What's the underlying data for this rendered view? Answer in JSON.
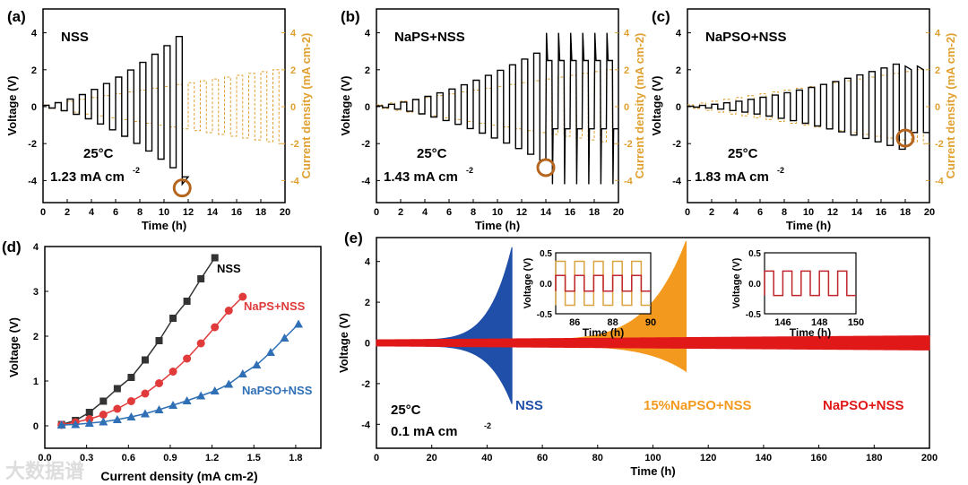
{
  "colors": {
    "black": "#000000",
    "orange": "#e0a030",
    "red": "#e03a3a",
    "blue": "#2f6fb5",
    "e_blue": "#1f4fa8",
    "e_orange": "#f39a1e",
    "e_red": "#e01818",
    "ring": "#b5651d"
  },
  "watermark": "大数据谱",
  "chart_data": [
    {
      "panel": "(a)",
      "type": "line",
      "label": "NSS",
      "temp": "25°C",
      "critical": "1.23 mA cm",
      "critical_sup": "-2",
      "xlabel": "Time (h)",
      "ylabel": "Voltage (V)",
      "y2label": "Current density (mA cm",
      "y2sup": "-2",
      ")": ")",
      "xlim": [
        0,
        20
      ],
      "ylim": [
        -5,
        5
      ],
      "xticks": [
        0,
        2,
        4,
        6,
        8,
        10,
        12,
        14,
        16,
        18,
        20
      ],
      "yticks": [
        -4,
        -2,
        0,
        2,
        4
      ],
      "current_step_per_h": 0.1,
      "failure_time_h": 11.5,
      "peak_voltage": 3.8
    },
    {
      "panel": "(b)",
      "type": "line",
      "label": "NaPS+NSS",
      "temp": "25°C",
      "critical": "1.43 mA cm",
      "critical_sup": "-2",
      "xlabel": "Time (h)",
      "ylabel": "Voltage (V)",
      "y2label": "Current density (mA cm",
      "y2sup": "-2",
      "xlim": [
        0,
        20
      ],
      "ylim": [
        -5,
        5
      ],
      "xticks": [
        0,
        2,
        4,
        6,
        8,
        10,
        12,
        14,
        16,
        18,
        20
      ],
      "yticks": [
        -4,
        -2,
        0,
        2,
        4
      ],
      "current_step_per_h": 0.1,
      "failure_time_h": 14,
      "peak_voltage": 2.9
    },
    {
      "panel": "(c)",
      "type": "line",
      "label": "NaPSO+NSS",
      "temp": "25°C",
      "critical": "1.83 mA cm",
      "critical_sup": "-2",
      "xlabel": "Time (h)",
      "ylabel": "Voltage (V)",
      "y2label": "Current density (mA cm",
      "y2sup": "-2",
      "xlim": [
        0,
        20
      ],
      "ylim": [
        -5,
        5
      ],
      "xticks": [
        0,
        2,
        4,
        6,
        8,
        10,
        12,
        14,
        16,
        18,
        20
      ],
      "yticks": [
        -4,
        -2,
        0,
        2,
        4
      ],
      "current_step_per_h": 0.1,
      "failure_time_h": 18,
      "peak_voltage": 2.3
    },
    {
      "panel": "(d)",
      "type": "line",
      "xlabel": "Current density (mA cm",
      "xsup": "-2",
      "ylabel": "Voltage (V)",
      "xlim": [
        0,
        2
      ],
      "ylim": [
        -0.5,
        4
      ],
      "xticks": [
        "0.0",
        "0.3",
        "0.6",
        "0.9",
        "1.2",
        "1.5",
        "1.8"
      ],
      "yticks": [
        0,
        1,
        2,
        3,
        4
      ],
      "series": [
        {
          "name": "NSS",
          "marker": "square",
          "x": [
            0.12,
            0.22,
            0.32,
            0.42,
            0.52,
            0.62,
            0.72,
            0.82,
            0.92,
            1.02,
            1.12,
            1.22
          ],
          "y": [
            0.03,
            0.12,
            0.3,
            0.55,
            0.83,
            1.08,
            1.47,
            1.9,
            2.4,
            2.78,
            3.28,
            3.75
          ]
        },
        {
          "name": "NaPS+NSS",
          "marker": "circle",
          "x": [
            0.12,
            0.22,
            0.32,
            0.42,
            0.52,
            0.62,
            0.72,
            0.82,
            0.92,
            1.02,
            1.12,
            1.22,
            1.32,
            1.42
          ],
          "y": [
            0.02,
            0.08,
            0.15,
            0.25,
            0.38,
            0.55,
            0.72,
            0.95,
            1.21,
            1.5,
            1.84,
            2.2,
            2.57,
            2.88
          ]
        },
        {
          "name": "NaPSO+NSS",
          "marker": "triangle",
          "x": [
            0.12,
            0.22,
            0.32,
            0.42,
            0.52,
            0.62,
            0.72,
            0.82,
            0.92,
            1.02,
            1.12,
            1.22,
            1.32,
            1.42,
            1.52,
            1.62,
            1.72,
            1.82
          ],
          "y": [
            0.02,
            0.03,
            0.06,
            0.09,
            0.14,
            0.2,
            0.27,
            0.36,
            0.46,
            0.56,
            0.67,
            0.78,
            0.93,
            1.16,
            1.36,
            1.64,
            1.96,
            2.27
          ]
        }
      ]
    },
    {
      "panel": "(e)",
      "type": "line",
      "xlabel": "Time (h)",
      "ylabel": "Voltage (V)",
      "xlim": [
        0,
        200
      ],
      "ylim": [
        -5,
        5
      ],
      "xticks": [
        0,
        20,
        40,
        60,
        80,
        100,
        120,
        140,
        160,
        180,
        200
      ],
      "yticks": [
        -4,
        -2,
        0,
        2,
        4
      ],
      "temp": "25°C",
      "current": "0.1 mA cm",
      "current_sup": "-2",
      "series": [
        {
          "name": "NSS",
          "end_h": 49,
          "max_v": 4.7,
          "min_v": -3
        },
        {
          "name": "15%NaPSO+NSS",
          "end_h": 112,
          "max_v": 5,
          "min_v": -1.4
        },
        {
          "name": "NaPSO+NSS",
          "end_h": 200,
          "max_v": 0.35,
          "min_v": -0.35
        }
      ],
      "insets": [
        {
          "xlabel": "Time (h)",
          "ylabel": "Voltage (V)",
          "xlim": [
            85,
            90
          ],
          "xticks": [
            "86",
            "88",
            "90"
          ],
          "yticks": [
            "0.5",
            "0.0",
            "-0.5"
          ],
          "series": [
            {
              "name": "15%NaPSO+NSS",
              "amp": 0.36
            },
            {
              "name": "NaPSO+NSS",
              "amp": 0.13
            }
          ]
        },
        {
          "xlabel": "Time (h)",
          "ylabel": "Voltage (V)",
          "xlim": [
            145,
            150
          ],
          "xticks": [
            "146",
            "148",
            "150"
          ],
          "yticks": [
            "0.5",
            "0.0",
            "-0.5"
          ],
          "series": [
            {
              "name": "NaPSO+NSS",
              "amp": 0.2
            }
          ]
        }
      ]
    }
  ]
}
